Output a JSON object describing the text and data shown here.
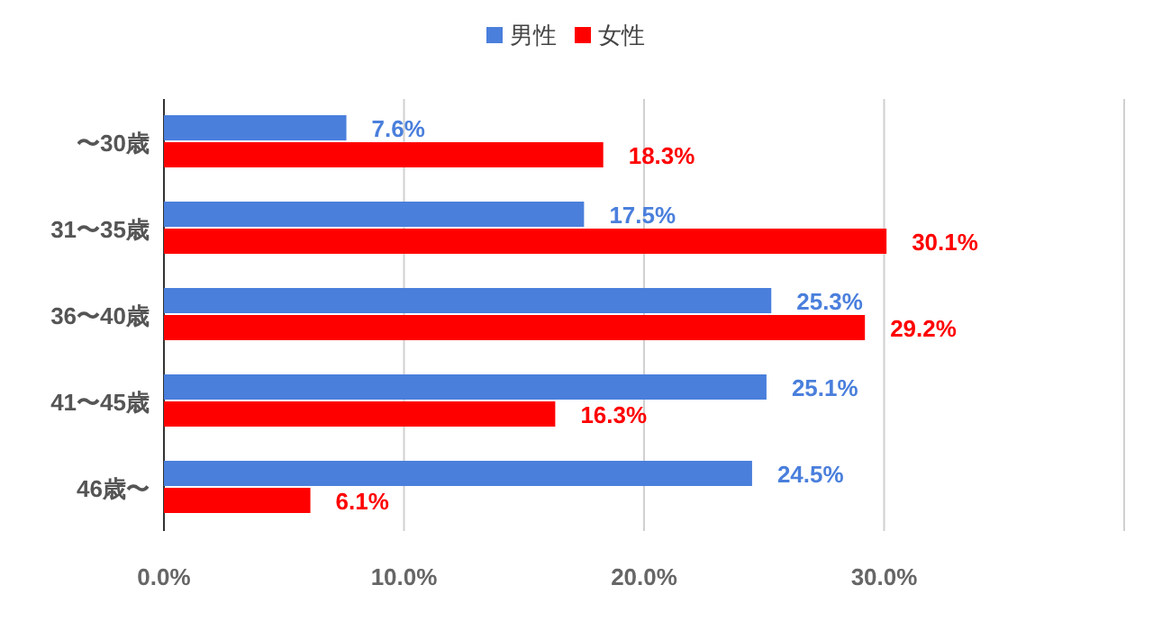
{
  "chart_data": {
    "type": "bar",
    "orientation": "horizontal",
    "categories": [
      "〜30歳",
      "31〜35歳",
      "36〜40歳",
      "41〜45歳",
      "46歳〜"
    ],
    "series": [
      {
        "name": "男性",
        "color": "#4a7fdc",
        "values": [
          7.6,
          17.5,
          25.3,
          25.1,
          24.5
        ],
        "value_labels": [
          "7.6%",
          "17.5%",
          "25.3%",
          "25.1%",
          "24.5%"
        ]
      },
      {
        "name": "女性",
        "color": "#ff0000",
        "values": [
          18.3,
          30.1,
          29.2,
          16.3,
          6.1
        ],
        "value_labels": [
          "18.3%",
          "30.1%",
          "29.2%",
          "16.3%",
          "6.1%"
        ]
      }
    ],
    "xlim": [
      0,
      40
    ],
    "xticks": [
      {
        "value": 0,
        "label": "0.0%"
      },
      {
        "value": 10,
        "label": "10.0%"
      },
      {
        "value": 20,
        "label": "20.0%"
      },
      {
        "value": 30,
        "label": "30.0%"
      },
      {
        "value": 40,
        "label": null
      }
    ],
    "grid": "x",
    "legend": "top"
  }
}
